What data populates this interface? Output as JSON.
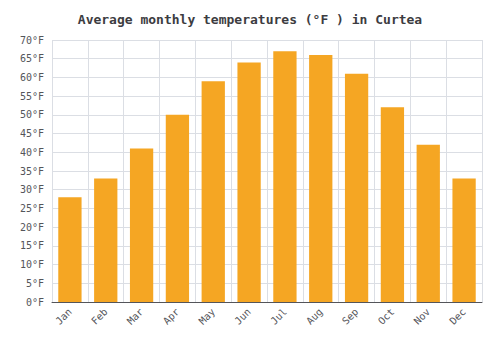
{
  "chart_data": {
    "type": "bar",
    "title": "Average monthly temperatures (°F ) in Curtea",
    "categories": [
      "Jan",
      "Feb",
      "Mar",
      "Apr",
      "May",
      "Jun",
      "Jul",
      "Aug",
      "Sep",
      "Oct",
      "Nov",
      "Dec"
    ],
    "values": [
      28,
      33,
      41,
      50,
      59,
      64,
      67,
      66,
      61,
      52,
      42,
      33
    ],
    "color": "#F5A623",
    "ylim": [
      0,
      70
    ],
    "yticks": [
      {
        "value": 0,
        "label": "0°F"
      },
      {
        "value": 5,
        "label": "5°F"
      },
      {
        "value": 10,
        "label": "10°F"
      },
      {
        "value": 15,
        "label": "15°F"
      },
      {
        "value": 20,
        "label": "20°F"
      },
      {
        "value": 25,
        "label": "25°F"
      },
      {
        "value": 30,
        "label": "30°F"
      },
      {
        "value": 35,
        "label": "35°F"
      },
      {
        "value": 40,
        "label": "40°F"
      },
      {
        "value": 45,
        "label": "45°F"
      },
      {
        "value": 50,
        "label": "50°F"
      },
      {
        "value": 55,
        "label": "55°F"
      },
      {
        "value": 60,
        "label": "60°F"
      },
      {
        "value": 65,
        "label": "65°F"
      },
      {
        "value": 70,
        "label": "70°F"
      }
    ],
    "grid": true
  }
}
